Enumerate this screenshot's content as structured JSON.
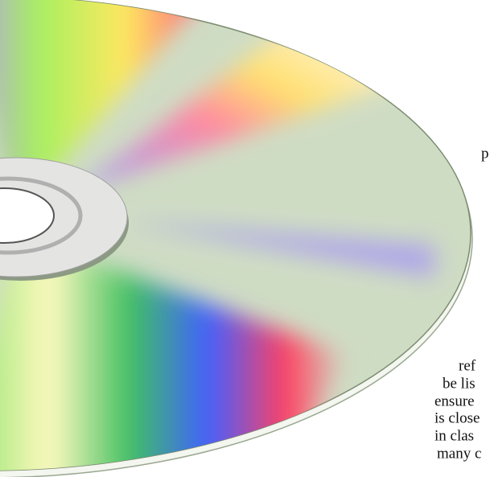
{
  "text_fragments": [
    "p",
    "ref",
    "be lis",
    "ensure",
    "is close",
    "in clas",
    "many c"
  ]
}
